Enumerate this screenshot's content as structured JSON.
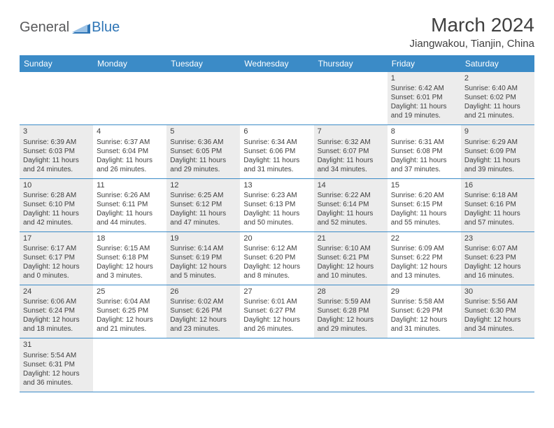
{
  "logo": {
    "general": "General",
    "blue": "Blue"
  },
  "title": "March 2024",
  "subtitle": "Jiangwakou, Tianjin, China",
  "columns": [
    "Sunday",
    "Monday",
    "Tuesday",
    "Wednesday",
    "Thursday",
    "Friday",
    "Saturday"
  ],
  "colors": {
    "header_bg": "#3b8bc7",
    "header_text": "#ffffff",
    "shaded_bg": "#ececec",
    "border": "#3b8bc7",
    "text": "#404040",
    "logo_gray": "#58595b",
    "logo_blue": "#2e75b6"
  },
  "weeks": [
    [
      {
        "empty": true
      },
      {
        "empty": true
      },
      {
        "empty": true
      },
      {
        "empty": true
      },
      {
        "empty": true
      },
      {
        "day": "1",
        "sunrise": "Sunrise: 6:42 AM",
        "sunset": "Sunset: 6:01 PM",
        "daylight": "Daylight: 11 hours and 19 minutes.",
        "shaded": true
      },
      {
        "day": "2",
        "sunrise": "Sunrise: 6:40 AM",
        "sunset": "Sunset: 6:02 PM",
        "daylight": "Daylight: 11 hours and 21 minutes.",
        "shaded": true
      }
    ],
    [
      {
        "day": "3",
        "sunrise": "Sunrise: 6:39 AM",
        "sunset": "Sunset: 6:03 PM",
        "daylight": "Daylight: 11 hours and 24 minutes.",
        "shaded": true
      },
      {
        "day": "4",
        "sunrise": "Sunrise: 6:37 AM",
        "sunset": "Sunset: 6:04 PM",
        "daylight": "Daylight: 11 hours and 26 minutes.",
        "shaded": false
      },
      {
        "day": "5",
        "sunrise": "Sunrise: 6:36 AM",
        "sunset": "Sunset: 6:05 PM",
        "daylight": "Daylight: 11 hours and 29 minutes.",
        "shaded": true
      },
      {
        "day": "6",
        "sunrise": "Sunrise: 6:34 AM",
        "sunset": "Sunset: 6:06 PM",
        "daylight": "Daylight: 11 hours and 31 minutes.",
        "shaded": false
      },
      {
        "day": "7",
        "sunrise": "Sunrise: 6:32 AM",
        "sunset": "Sunset: 6:07 PM",
        "daylight": "Daylight: 11 hours and 34 minutes.",
        "shaded": true
      },
      {
        "day": "8",
        "sunrise": "Sunrise: 6:31 AM",
        "sunset": "Sunset: 6:08 PM",
        "daylight": "Daylight: 11 hours and 37 minutes.",
        "shaded": false
      },
      {
        "day": "9",
        "sunrise": "Sunrise: 6:29 AM",
        "sunset": "Sunset: 6:09 PM",
        "daylight": "Daylight: 11 hours and 39 minutes.",
        "shaded": true
      }
    ],
    [
      {
        "day": "10",
        "sunrise": "Sunrise: 6:28 AM",
        "sunset": "Sunset: 6:10 PM",
        "daylight": "Daylight: 11 hours and 42 minutes.",
        "shaded": true
      },
      {
        "day": "11",
        "sunrise": "Sunrise: 6:26 AM",
        "sunset": "Sunset: 6:11 PM",
        "daylight": "Daylight: 11 hours and 44 minutes.",
        "shaded": false
      },
      {
        "day": "12",
        "sunrise": "Sunrise: 6:25 AM",
        "sunset": "Sunset: 6:12 PM",
        "daylight": "Daylight: 11 hours and 47 minutes.",
        "shaded": true
      },
      {
        "day": "13",
        "sunrise": "Sunrise: 6:23 AM",
        "sunset": "Sunset: 6:13 PM",
        "daylight": "Daylight: 11 hours and 50 minutes.",
        "shaded": false
      },
      {
        "day": "14",
        "sunrise": "Sunrise: 6:22 AM",
        "sunset": "Sunset: 6:14 PM",
        "daylight": "Daylight: 11 hours and 52 minutes.",
        "shaded": true
      },
      {
        "day": "15",
        "sunrise": "Sunrise: 6:20 AM",
        "sunset": "Sunset: 6:15 PM",
        "daylight": "Daylight: 11 hours and 55 minutes.",
        "shaded": false
      },
      {
        "day": "16",
        "sunrise": "Sunrise: 6:18 AM",
        "sunset": "Sunset: 6:16 PM",
        "daylight": "Daylight: 11 hours and 57 minutes.",
        "shaded": true
      }
    ],
    [
      {
        "day": "17",
        "sunrise": "Sunrise: 6:17 AM",
        "sunset": "Sunset: 6:17 PM",
        "daylight": "Daylight: 12 hours and 0 minutes.",
        "shaded": true
      },
      {
        "day": "18",
        "sunrise": "Sunrise: 6:15 AM",
        "sunset": "Sunset: 6:18 PM",
        "daylight": "Daylight: 12 hours and 3 minutes.",
        "shaded": false
      },
      {
        "day": "19",
        "sunrise": "Sunrise: 6:14 AM",
        "sunset": "Sunset: 6:19 PM",
        "daylight": "Daylight: 12 hours and 5 minutes.",
        "shaded": true
      },
      {
        "day": "20",
        "sunrise": "Sunrise: 6:12 AM",
        "sunset": "Sunset: 6:20 PM",
        "daylight": "Daylight: 12 hours and 8 minutes.",
        "shaded": false
      },
      {
        "day": "21",
        "sunrise": "Sunrise: 6:10 AM",
        "sunset": "Sunset: 6:21 PM",
        "daylight": "Daylight: 12 hours and 10 minutes.",
        "shaded": true
      },
      {
        "day": "22",
        "sunrise": "Sunrise: 6:09 AM",
        "sunset": "Sunset: 6:22 PM",
        "daylight": "Daylight: 12 hours and 13 minutes.",
        "shaded": false
      },
      {
        "day": "23",
        "sunrise": "Sunrise: 6:07 AM",
        "sunset": "Sunset: 6:23 PM",
        "daylight": "Daylight: 12 hours and 16 minutes.",
        "shaded": true
      }
    ],
    [
      {
        "day": "24",
        "sunrise": "Sunrise: 6:06 AM",
        "sunset": "Sunset: 6:24 PM",
        "daylight": "Daylight: 12 hours and 18 minutes.",
        "shaded": true
      },
      {
        "day": "25",
        "sunrise": "Sunrise: 6:04 AM",
        "sunset": "Sunset: 6:25 PM",
        "daylight": "Daylight: 12 hours and 21 minutes.",
        "shaded": false
      },
      {
        "day": "26",
        "sunrise": "Sunrise: 6:02 AM",
        "sunset": "Sunset: 6:26 PM",
        "daylight": "Daylight: 12 hours and 23 minutes.",
        "shaded": true
      },
      {
        "day": "27",
        "sunrise": "Sunrise: 6:01 AM",
        "sunset": "Sunset: 6:27 PM",
        "daylight": "Daylight: 12 hours and 26 minutes.",
        "shaded": false
      },
      {
        "day": "28",
        "sunrise": "Sunrise: 5:59 AM",
        "sunset": "Sunset: 6:28 PM",
        "daylight": "Daylight: 12 hours and 29 minutes.",
        "shaded": true
      },
      {
        "day": "29",
        "sunrise": "Sunrise: 5:58 AM",
        "sunset": "Sunset: 6:29 PM",
        "daylight": "Daylight: 12 hours and 31 minutes.",
        "shaded": false
      },
      {
        "day": "30",
        "sunrise": "Sunrise: 5:56 AM",
        "sunset": "Sunset: 6:30 PM",
        "daylight": "Daylight: 12 hours and 34 minutes.",
        "shaded": true
      }
    ],
    [
      {
        "day": "31",
        "sunrise": "Sunrise: 5:54 AM",
        "sunset": "Sunset: 6:31 PM",
        "daylight": "Daylight: 12 hours and 36 minutes.",
        "shaded": true
      },
      {
        "empty": true
      },
      {
        "empty": true
      },
      {
        "empty": true
      },
      {
        "empty": true
      },
      {
        "empty": true
      },
      {
        "empty": true
      }
    ]
  ]
}
